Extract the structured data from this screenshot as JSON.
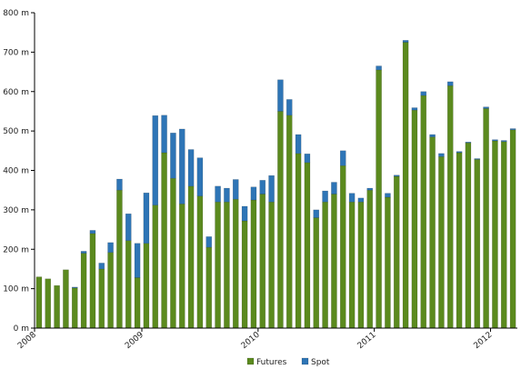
{
  "chart_data": {
    "type": "bar",
    "stacked": true,
    "title": "",
    "xlabel": "",
    "ylabel": "",
    "ylim": [
      0,
      800
    ],
    "yticks": [
      {
        "value": 0,
        "label": "0 m"
      },
      {
        "value": 100,
        "label": "100 m"
      },
      {
        "value": 200,
        "label": "200 m"
      },
      {
        "value": 300,
        "label": "300 m"
      },
      {
        "value": 400,
        "label": "400 m"
      },
      {
        "value": 500,
        "label": "500 m"
      },
      {
        "value": 600,
        "label": "600 m"
      },
      {
        "value": 700,
        "label": "700 m"
      },
      {
        "value": 800,
        "label": "800 m"
      }
    ],
    "xticks": [
      {
        "index": 0,
        "label": "2008"
      },
      {
        "index": 12,
        "label": "2009"
      },
      {
        "index": 25,
        "label": "2010"
      },
      {
        "index": 38,
        "label": "2011"
      },
      {
        "index": 51,
        "label": "2012"
      }
    ],
    "grid": false,
    "legend_position": "bottom-center",
    "series": [
      {
        "name": "Futures",
        "color": "#5b8a1e",
        "values": [
          130,
          125,
          108,
          148,
          102,
          190,
          240,
          150,
          192,
          350,
          222,
          128,
          215,
          312,
          445,
          380,
          315,
          360,
          335,
          205,
          320,
          320,
          327,
          272,
          325,
          340,
          320,
          550,
          540,
          443,
          420,
          280,
          320,
          340,
          412,
          320,
          320,
          350,
          655,
          332,
          385,
          725,
          553,
          590,
          485,
          435,
          615,
          445,
          470,
          428,
          557,
          475,
          473,
          503
        ]
      },
      {
        "name": "Spot",
        "color": "#2e75b6",
        "values": [
          0,
          0,
          0,
          0,
          2,
          5,
          8,
          15,
          25,
          28,
          68,
          87,
          128,
          227,
          95,
          115,
          190,
          93,
          97,
          27,
          40,
          35,
          50,
          37,
          33,
          35,
          67,
          80,
          40,
          48,
          22,
          20,
          28,
          30,
          38,
          22,
          10,
          5,
          10,
          10,
          3,
          5,
          6,
          10,
          6,
          8,
          10,
          3,
          2,
          2,
          4,
          3,
          3,
          3
        ]
      }
    ]
  }
}
